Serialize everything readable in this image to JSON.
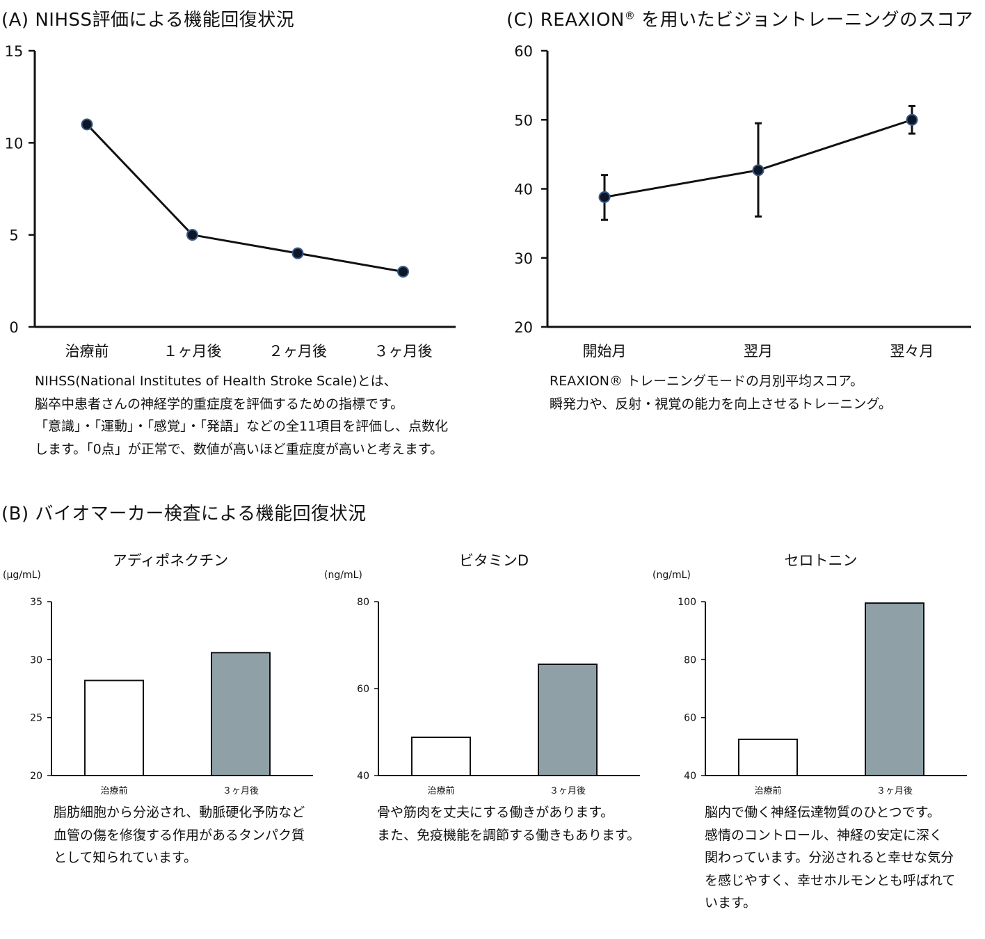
{
  "section_a": {
    "title": "(A) NIHSS評価による機能回復状況",
    "description": [
      "NIHSS(National Institutes of Health Stroke Scale)とは、",
      "脳卒中患者さんの神経学的重症度を評価するための指標です。",
      "「意識」・「運動」・「感覚」・「発語」などの全11項目を評価し、点数化",
      "します。「0点」が正常で、数値が高いほど重症度が高いと考えます。"
    ]
  },
  "section_c": {
    "title": "(C) REAXION",
    "title_mark": "®",
    "title_rest": " を用いたビジョントレーニングのスコア",
    "description": [
      "REAXION® トレーニングモードの月別平均スコア。",
      "瞬発力や、反射・視覚の能力を向上させるトレーニング。"
    ]
  },
  "section_b": {
    "title": "(B) バイオマーカー検査による機能回復状況",
    "panels": [
      {
        "title": "アディポネクチン",
        "unit": "(μg/mL)",
        "description": [
          "脂肪細胞から分泌され、動脈硬化予防など",
          "血管の傷を修復する作用があるタンパク質",
          "として知られています。"
        ]
      },
      {
        "title": "ビタミンD",
        "unit": "(ng/mL)",
        "description": [
          "骨や筋肉を丈夫にする働きがあります。",
          "また、免疫機能を調節する働きもあります。"
        ]
      },
      {
        "title": "セロトニン",
        "unit": "(ng/mL)",
        "description": [
          "脳内で働く神経伝達物質のひとつです。",
          "感情のコントロール、神経の安定に深く",
          "関わっています。分泌されると幸せな気分",
          "を感じやすく、幸せホルモンとも呼ばれて",
          "います。"
        ]
      }
    ]
  },
  "colors": {
    "line": "#111111",
    "marker_fill": "#0d1626",
    "marker_edge": "#3a5a8a",
    "bar_before": "#ffffff",
    "bar_after": "#8fa0a6",
    "axis": "#111111"
  },
  "chart_data": [
    {
      "id": "nihss",
      "type": "line",
      "title": "(A) NIHSS評価による機能回復状況",
      "categories": [
        "治療前",
        "１ヶ月後",
        "２ヶ月後",
        "３ヶ月後"
      ],
      "values": [
        11,
        5,
        4,
        3
      ],
      "ylim": [
        0,
        15
      ],
      "yticks": [
        0,
        5,
        10,
        15
      ],
      "xlabel": "",
      "ylabel": "",
      "grid": false
    },
    {
      "id": "reaxion",
      "type": "line",
      "title": "(C) REAXION® を用いたビジョントレーニングのスコア",
      "categories": [
        "開始月",
        "翌月",
        "翌々月"
      ],
      "values": [
        38.8,
        42.7,
        50.0
      ],
      "error_low": [
        35.5,
        36.0,
        48.0
      ],
      "error_high": [
        42.0,
        49.5,
        52.0
      ],
      "ylim": [
        20,
        60
      ],
      "yticks": [
        20,
        30,
        40,
        50,
        60
      ],
      "xlabel": "",
      "ylabel": "",
      "grid": false
    },
    {
      "id": "adiponectin",
      "type": "bar",
      "title": "アディポネクチン",
      "categories": [
        "治療前",
        "３ヶ月後"
      ],
      "values": [
        28.2,
        30.6
      ],
      "ylim": [
        20,
        35
      ],
      "yticks": [
        20,
        25,
        30,
        35
      ],
      "ylabel": "(μg/mL)",
      "grid": false
    },
    {
      "id": "vitamin_d",
      "type": "bar",
      "title": "ビタミンD",
      "categories": [
        "治療前",
        "３ヶ月後"
      ],
      "values": [
        48.8,
        65.6
      ],
      "ylim": [
        40,
        80
      ],
      "yticks": [
        40,
        60,
        80
      ],
      "ylabel": "(ng/mL)",
      "grid": false
    },
    {
      "id": "serotonin",
      "type": "bar",
      "title": "セロトニン",
      "categories": [
        "治療前",
        "３ヶ月後"
      ],
      "values": [
        52.5,
        99.5
      ],
      "ylim": [
        40,
        100
      ],
      "yticks": [
        40,
        60,
        80,
        100
      ],
      "ylabel": "(ng/mL)",
      "grid": false
    }
  ]
}
